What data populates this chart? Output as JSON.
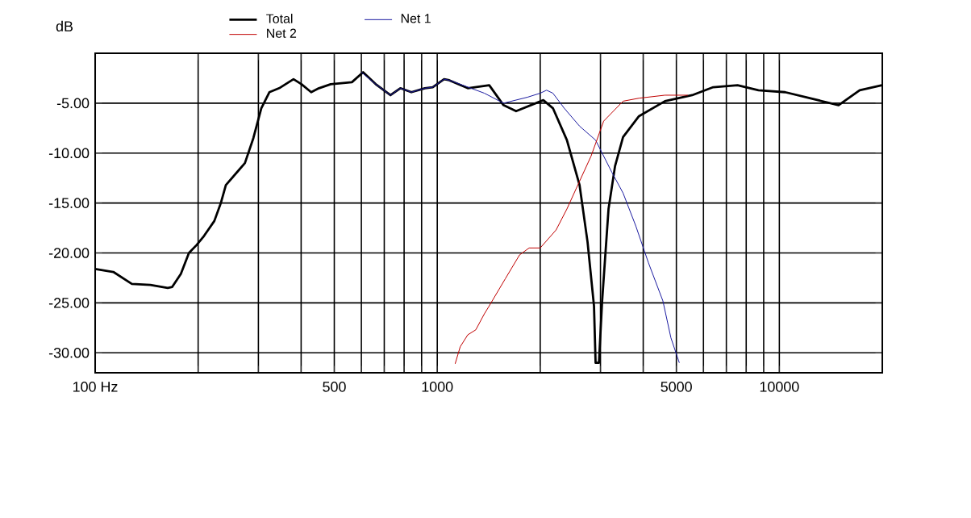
{
  "chart_data": {
    "type": "line",
    "ylabel": "dB",
    "log": "x",
    "grid": true,
    "legend": "top",
    "line_style": "solid",
    "xlim": [
      100,
      20000
    ],
    "ylim": [
      -32,
      0
    ],
    "xticks": [
      {
        "value": 100,
        "label": "100 Hz"
      },
      {
        "value": 200,
        "label": null
      },
      {
        "value": 300,
        "label": null
      },
      {
        "value": 400,
        "label": null
      },
      500,
      {
        "value": 600,
        "label": null
      },
      {
        "value": 700,
        "label": null
      },
      {
        "value": 800,
        "label": null
      },
      {
        "value": 900,
        "label": null
      },
      1000,
      {
        "value": 2000,
        "label": null
      },
      {
        "value": 3000,
        "label": null
      },
      {
        "value": 4000,
        "label": null
      },
      5000,
      {
        "value": 6000,
        "label": null
      },
      {
        "value": 7000,
        "label": null
      },
      {
        "value": 8000,
        "label": null
      },
      {
        "value": 9000,
        "label": null
      },
      10000
    ],
    "yticks": [
      {
        "value": -5,
        "label": "-5.00"
      },
      {
        "value": -10,
        "label": "-10.00"
      },
      {
        "value": -15,
        "label": "-15.00"
      },
      {
        "value": -20,
        "label": "-20.00"
      },
      {
        "value": -25,
        "label": "-25.00"
      },
      {
        "value": -30,
        "label": "-30.00"
      }
    ],
    "series": [
      {
        "name": "Total",
        "color": "#000000",
        "x": [
          100,
          113,
          128,
          145,
          163,
          168,
          178,
          188,
          198,
          207,
          223,
          233,
          241,
          260,
          274,
          290,
          306,
          323,
          345,
          380,
          401,
          428,
          451,
          488,
          563,
          607,
          661,
          730,
          780,
          840,
          920,
          970,
          1047,
          1084,
          1228,
          1419,
          1562,
          1700,
          2042,
          2178,
          2393,
          2606,
          2750,
          2872,
          2903,
          2969,
          3034,
          3167,
          3309,
          3493,
          3889,
          4630,
          5560,
          6408,
          7550,
          8690,
          10400,
          14900,
          17170,
          19950
        ],
        "values": [
          -21.6,
          -21.9,
          -23.1,
          -23.2,
          -23.5,
          -23.4,
          -22.1,
          -20.0,
          -19.2,
          -18.4,
          -16.8,
          -15.0,
          -13.2,
          -11.9,
          -11.0,
          -8.5,
          -5.5,
          -3.9,
          -3.5,
          -2.6,
          -3.1,
          -3.9,
          -3.5,
          -3.1,
          -2.9,
          -1.9,
          -3.1,
          -4.2,
          -3.5,
          -3.9,
          -3.5,
          -3.4,
          -2.6,
          -2.7,
          -3.5,
          -3.2,
          -5.2,
          -5.8,
          -4.7,
          -5.5,
          -8.7,
          -13.2,
          -18.9,
          -25.3,
          -31.0,
          -31.0,
          -24.8,
          -15.6,
          -11.3,
          -8.4,
          -6.3,
          -4.8,
          -4.2,
          -3.4,
          -3.2,
          -3.7,
          -3.9,
          -5.2,
          -3.7,
          -3.2
        ]
      },
      {
        "name": "Net 1",
        "color": "#1a1aa0",
        "x": [
          600,
          661,
          730,
          780,
          840,
          920,
          970,
          1047,
          1084,
          1373,
          1562,
          1837,
          2000,
          2087,
          2178,
          2350,
          2606,
          2903,
          3237,
          3493,
          3806,
          4145,
          4566,
          4820,
          5100
        ],
        "values": [
          -1.9,
          -3.1,
          -4.2,
          -3.5,
          -3.9,
          -3.5,
          -3.4,
          -2.6,
          -2.7,
          -4.0,
          -5.0,
          -4.4,
          -4.0,
          -3.7,
          -4.0,
          -5.5,
          -7.3,
          -8.7,
          -11.9,
          -14.0,
          -17.3,
          -21.0,
          -24.8,
          -28.5,
          -31.0
        ]
      },
      {
        "name": "Net 2",
        "color": "#c00000",
        "x": [
          1128,
          1167,
          1228,
          1296,
          1373,
          1419,
          1580,
          1740,
          1856,
          2000,
          2225,
          2393,
          2552,
          2816,
          3065,
          3493,
          3889,
          4630,
          5400
        ],
        "values": [
          -31.1,
          -29.4,
          -28.2,
          -27.7,
          -26.1,
          -25.3,
          -22.6,
          -20.2,
          -19.5,
          -19.5,
          -17.7,
          -15.6,
          -13.5,
          -10.3,
          -6.8,
          -4.8,
          -4.5,
          -4.2,
          -4.2
        ]
      }
    ]
  }
}
